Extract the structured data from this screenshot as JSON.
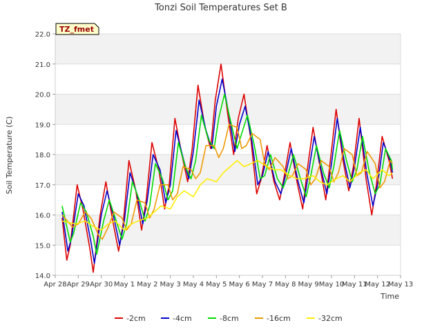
{
  "chart_data": {
    "type": "line",
    "title": "Tonzi Soil Temperatures Set B",
    "xlabel": "Time",
    "ylabel": "Soil Temperature (C)",
    "annotation": "TZ_fmet",
    "ylim": [
      14.0,
      22.0
    ],
    "xlim": [
      0,
      15
    ],
    "yticks": [
      14.0,
      15.0,
      16.0,
      17.0,
      18.0,
      19.0,
      20.0,
      21.0,
      22.0
    ],
    "ytick_labels": [
      "14.0",
      "15.0",
      "16.0",
      "17.0",
      "18.0",
      "19.0",
      "20.0",
      "21.0",
      "22.0"
    ],
    "xticks": [
      0,
      1,
      2,
      3,
      4,
      5,
      6,
      7,
      8,
      9,
      10,
      11,
      12,
      13,
      14,
      15
    ],
    "xtick_labels": [
      "Apr 28",
      "Apr 29",
      "Apr 30",
      "May 1",
      "May 2",
      "May 3",
      "May 4",
      "May 5",
      "May 6",
      "May 7",
      "May 8",
      "May 9",
      "May 10",
      "May 11",
      "May 12",
      "May 13"
    ],
    "grid": true,
    "legend_position": "bottom",
    "series": [
      {
        "name": "-2cm",
        "color": "#dd0000",
        "x": [
          0.3,
          0.5,
          0.65,
          0.95,
          1.2,
          1.5,
          1.65,
          1.95,
          2.2,
          2.5,
          2.75,
          2.95,
          3.2,
          3.5,
          3.75,
          3.95,
          4.2,
          4.5,
          4.75,
          4.95,
          5.2,
          5.5,
          5.75,
          5.95,
          6.2,
          6.5,
          6.75,
          6.95,
          7.2,
          7.5,
          7.75,
          7.95,
          8.2,
          8.5,
          8.75,
          8.95,
          9.2,
          9.5,
          9.75,
          9.95,
          10.2,
          10.5,
          10.75,
          10.95,
          11.2,
          11.5,
          11.75,
          11.95,
          12.2,
          12.5,
          12.75,
          12.95,
          13.2,
          13.5,
          13.75,
          13.95,
          14.2,
          14.5,
          14.65
        ],
        "y": [
          15.9,
          14.5,
          15.0,
          17.0,
          16.2,
          14.9,
          14.1,
          16.0,
          17.1,
          15.8,
          14.8,
          15.7,
          17.8,
          16.8,
          15.5,
          16.5,
          18.4,
          17.5,
          16.2,
          17.0,
          19.2,
          18.0,
          17.1,
          18.2,
          20.3,
          18.9,
          18.2,
          19.8,
          21.0,
          19.3,
          18.0,
          19.2,
          20.0,
          18.5,
          16.7,
          17.2,
          18.3,
          17.1,
          16.5,
          17.3,
          18.4,
          17.1,
          16.2,
          17.5,
          18.9,
          17.6,
          16.5,
          17.8,
          19.5,
          17.8,
          16.8,
          17.6,
          19.2,
          17.2,
          16.0,
          17.0,
          18.6,
          17.8,
          17.2
        ]
      },
      {
        "name": "-4cm",
        "color": "#0000cc",
        "x": [
          0.3,
          0.55,
          0.7,
          1.0,
          1.25,
          1.55,
          1.7,
          2.0,
          2.25,
          2.55,
          2.8,
          3.0,
          3.25,
          3.55,
          3.8,
          4.0,
          4.25,
          4.55,
          4.8,
          5.0,
          5.25,
          5.55,
          5.8,
          6.0,
          6.25,
          6.55,
          6.8,
          7.0,
          7.25,
          7.55,
          7.8,
          8.0,
          8.25,
          8.55,
          8.8,
          9.0,
          9.25,
          9.55,
          9.8,
          10.0,
          10.25,
          10.55,
          10.8,
          11.0,
          11.25,
          11.55,
          11.8,
          12.0,
          12.25,
          12.55,
          12.8,
          13.0,
          13.25,
          13.55,
          13.8,
          14.0,
          14.25,
          14.55,
          14.65
        ],
        "y": [
          16.1,
          14.8,
          15.2,
          16.7,
          16.3,
          15.1,
          14.4,
          16.0,
          16.8,
          15.9,
          15.0,
          15.8,
          17.4,
          16.7,
          15.7,
          16.5,
          18.0,
          17.5,
          16.4,
          17.0,
          18.8,
          17.9,
          17.2,
          18.1,
          19.8,
          18.8,
          18.2,
          19.6,
          20.5,
          19.3,
          18.1,
          19.0,
          19.6,
          18.4,
          17.0,
          17.3,
          18.1,
          17.1,
          16.7,
          17.3,
          18.2,
          17.1,
          16.4,
          17.4,
          18.6,
          17.5,
          16.7,
          17.7,
          19.2,
          17.8,
          16.9,
          17.6,
          18.9,
          17.3,
          16.3,
          17.0,
          18.4,
          17.8,
          17.4
        ]
      },
      {
        "name": "-8cm",
        "color": "#00dd00",
        "x": [
          0.3,
          0.65,
          0.8,
          1.1,
          1.35,
          1.65,
          1.8,
          2.1,
          2.35,
          2.65,
          2.9,
          3.1,
          3.35,
          3.65,
          3.9,
          4.1,
          4.35,
          4.65,
          4.9,
          5.1,
          5.35,
          5.65,
          5.9,
          6.1,
          6.35,
          6.65,
          6.9,
          7.1,
          7.35,
          7.65,
          7.9,
          8.1,
          8.35,
          8.65,
          8.9,
          9.1,
          9.35,
          9.65,
          9.9,
          10.1,
          10.35,
          10.65,
          10.9,
          11.1,
          11.35,
          11.65,
          11.9,
          12.1,
          12.35,
          12.65,
          12.9,
          13.1,
          13.35,
          13.65,
          13.9,
          14.1,
          14.35,
          14.6,
          14.65
        ],
        "y": [
          16.3,
          15.1,
          15.4,
          16.4,
          16.1,
          15.3,
          14.7,
          15.8,
          16.5,
          15.8,
          15.2,
          15.7,
          17.1,
          16.5,
          15.8,
          16.3,
          17.7,
          17.2,
          16.5,
          16.8,
          18.4,
          17.6,
          17.2,
          17.8,
          19.3,
          18.5,
          18.2,
          19.2,
          20.0,
          19.0,
          18.2,
          18.7,
          19.3,
          18.3,
          17.2,
          17.3,
          18.0,
          17.2,
          16.9,
          17.3,
          18.0,
          17.2,
          16.6,
          17.3,
          18.3,
          17.4,
          16.9,
          17.6,
          18.8,
          17.8,
          17.1,
          17.5,
          18.6,
          17.4,
          16.7,
          17.0,
          18.2,
          17.8,
          17.5
        ]
      },
      {
        "name": "-16cm",
        "color": "#ee9900",
        "x": [
          0.3,
          0.75,
          1.0,
          1.3,
          1.55,
          1.9,
          2.05,
          2.3,
          2.55,
          2.9,
          3.1,
          3.3,
          3.55,
          3.9,
          4.1,
          4.3,
          4.55,
          4.9,
          5.1,
          5.3,
          5.55,
          5.9,
          6.1,
          6.3,
          6.55,
          6.9,
          7.1,
          7.3,
          7.55,
          7.9,
          8.1,
          8.3,
          8.55,
          8.9,
          9.1,
          9.3,
          9.55,
          9.9,
          10.1,
          10.3,
          10.55,
          10.9,
          11.1,
          11.3,
          11.55,
          11.9,
          12.1,
          12.3,
          12.55,
          12.9,
          13.1,
          13.3,
          13.55,
          13.9,
          14.1,
          14.3,
          14.55,
          14.65
        ],
        "y": [
          16.0,
          15.6,
          15.7,
          16.1,
          15.9,
          15.3,
          15.2,
          15.6,
          16.1,
          15.9,
          15.5,
          15.7,
          16.5,
          16.4,
          15.9,
          16.2,
          17.0,
          17.0,
          16.5,
          16.7,
          17.6,
          17.5,
          17.2,
          17.4,
          18.3,
          18.3,
          17.9,
          18.2,
          19.0,
          18.9,
          18.2,
          18.3,
          18.7,
          18.5,
          17.7,
          17.5,
          17.9,
          17.6,
          17.2,
          17.3,
          17.7,
          17.5,
          17.0,
          17.2,
          17.8,
          17.6,
          17.1,
          17.4,
          18.2,
          18.0,
          17.3,
          17.4,
          18.1,
          17.7,
          16.9,
          17.1,
          17.8,
          17.7
        ]
      },
      {
        "name": "-32cm",
        "color": "#ffee00",
        "x": [
          0.3,
          0.9,
          1.3,
          1.7,
          2.0,
          2.3,
          2.6,
          3.0,
          3.3,
          3.6,
          4.0,
          4.3,
          4.6,
          5.0,
          5.3,
          5.6,
          6.0,
          6.3,
          6.6,
          7.0,
          7.3,
          7.6,
          7.9,
          8.2,
          8.5,
          8.8,
          9.2,
          9.5,
          9.8,
          10.2,
          10.5,
          10.8,
          11.2,
          11.5,
          11.8,
          12.2,
          12.5,
          12.8,
          13.2,
          13.5,
          13.8,
          14.2,
          14.5,
          14.65
        ],
        "y": [
          15.8,
          15.7,
          15.8,
          15.6,
          15.5,
          15.7,
          15.8,
          15.5,
          15.7,
          15.8,
          15.9,
          16.1,
          16.3,
          16.2,
          16.6,
          16.8,
          16.6,
          17.0,
          17.2,
          17.1,
          17.4,
          17.6,
          17.8,
          17.6,
          17.7,
          17.8,
          17.6,
          17.5,
          17.5,
          17.3,
          17.2,
          17.2,
          17.3,
          17.1,
          17.0,
          17.2,
          17.3,
          17.1,
          17.4,
          17.5,
          17.2,
          17.5,
          17.3,
          17.4
        ]
      }
    ]
  }
}
